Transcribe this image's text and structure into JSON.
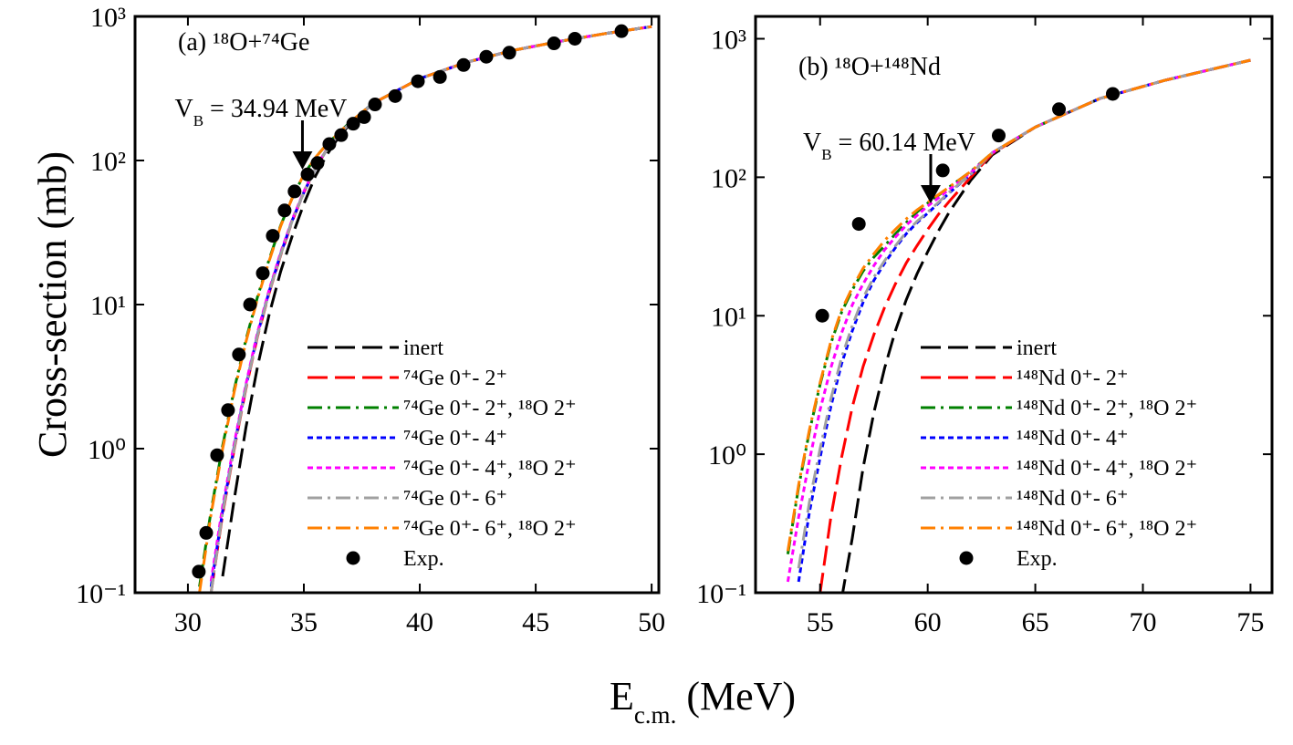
{
  "y_label": "Cross-section (mb)",
  "x_label": [
    {
      "text": "E"
    },
    {
      "text": "c.m.",
      "sub": true
    },
    {
      "text": " (MeV)"
    }
  ],
  "chart_data": [
    {
      "type": "line",
      "title": "(a) ¹⁸O+⁷⁴Ge",
      "yscale": "log",
      "legend_loc": "lower right",
      "xlim": [
        27.72,
        50.31
      ],
      "xticks": [
        30,
        35,
        40,
        45,
        50
      ],
      "ylim": [
        0.1,
        1000
      ],
      "yticks": [
        {
          "value": 0.1,
          "label": "10⁻¹"
        },
        {
          "value": 1,
          "label": "10⁰"
        },
        {
          "value": 10,
          "label": "10¹"
        },
        {
          "value": 100,
          "label": "10²"
        },
        {
          "value": 1000,
          "label": "10³"
        }
      ],
      "annotation": {
        "x": 34.94,
        "parts": [
          {
            "text": "V"
          },
          {
            "text": "B",
            "sub": true
          },
          {
            "text": " = 34.94 MeV"
          }
        ]
      },
      "x": [
        30.5,
        31,
        31.5,
        32,
        32.5,
        33,
        33.5,
        34,
        34.5,
        35,
        35.5,
        36,
        36.5,
        37,
        38,
        40,
        42,
        44,
        46,
        48,
        50
      ],
      "series": [
        {
          "name": "inert",
          "color": "#000000",
          "linestyle": "--",
          "values": [
            null,
            null,
            0.13,
            0.45,
            1.4,
            3.7,
            8.5,
            17,
            30,
            50,
            78,
            110,
            145,
            180,
            250,
            370,
            480,
            580,
            670,
            760,
            850
          ]
        },
        {
          "name": "⁷⁴Ge 0⁺- 2⁺",
          "color": "#ff0000",
          "linestyle": "--",
          "values": [
            null,
            0.1,
            0.35,
            1.0,
            2.6,
            6,
            12,
            22,
            38,
            60,
            88,
            120,
            150,
            183,
            250,
            370,
            480,
            580,
            670,
            760,
            850
          ]
        },
        {
          "name": "⁷⁴Ge 0⁺- 2⁺, ¹⁸O 2⁺",
          "color": "#008000",
          "linestyle": "-.",
          "values": [
            0.11,
            0.37,
            1.05,
            2.6,
            5.7,
            11.3,
            20.5,
            35.5,
            55,
            80,
            105,
            130,
            155,
            185,
            250,
            370,
            480,
            580,
            670,
            760,
            850
          ]
        },
        {
          "name": "⁷⁴Ge 0⁺- 4⁺",
          "color": "#0000ff",
          "linestyle": ":",
          "values": [
            null,
            0.11,
            0.37,
            1.05,
            2.7,
            6.2,
            12.3,
            22.5,
            38.5,
            60,
            88,
            120,
            150,
            183,
            250,
            370,
            480,
            580,
            670,
            760,
            850
          ]
        },
        {
          "name": "⁷⁴Ge 0⁺- 4⁺, ¹⁸O 2⁺",
          "color": "#ff00ff",
          "linestyle": ":",
          "values": [
            null,
            0.12,
            0.4,
            1.1,
            2.8,
            6.4,
            12.6,
            23,
            39,
            61,
            89,
            121,
            151,
            183,
            250,
            370,
            480,
            580,
            670,
            760,
            850
          ]
        },
        {
          "name": "⁷⁴Ge 0⁺- 6⁺",
          "color": "#a0a0a0",
          "linestyle": "-.",
          "values": [
            null,
            0.1,
            0.36,
            1.02,
            2.65,
            6.1,
            12.1,
            22.2,
            38.2,
            60,
            88,
            120,
            150,
            183,
            250,
            370,
            480,
            580,
            670,
            760,
            850
          ]
        },
        {
          "name": "⁷⁴Ge 0⁺- 6⁺, ¹⁸O 2⁺",
          "color": "#ff8000",
          "linestyle": "-.",
          "values": [
            0.1,
            0.35,
            1.0,
            2.5,
            5.5,
            11,
            20,
            35,
            55,
            80,
            105,
            130,
            155,
            185,
            250,
            370,
            480,
            580,
            670,
            760,
            850
          ]
        },
        {
          "name": "Exp.",
          "type": "scatter",
          "color": "#000000",
          "x": [
            30.47,
            30.79,
            31.26,
            31.73,
            32.2,
            32.68,
            33.23,
            33.66,
            34.17,
            34.6,
            35.16,
            35.59,
            36.1,
            36.61,
            37.13,
            37.6,
            38.07,
            38.94,
            39.92,
            40.87,
            41.89,
            42.87,
            43.86,
            45.79,
            46.69,
            48.7
          ],
          "values": [
            0.14,
            0.26,
            0.9,
            1.85,
            4.5,
            10,
            16.5,
            30,
            45,
            61,
            80,
            96,
            130,
            150,
            180,
            200,
            245,
            280,
            355,
            380,
            460,
            525,
            560,
            650,
            700,
            790
          ]
        }
      ]
    },
    {
      "type": "line",
      "title": "(b) ¹⁸O+¹⁴⁸Nd",
      "yscale": "log",
      "legend_loc": "lower right",
      "xlim": [
        52,
        76
      ],
      "xticks": [
        55,
        60,
        65,
        70,
        75
      ],
      "ylim": [
        0.1,
        1450
      ],
      "yticks": [
        {
          "value": 0.1,
          "label": "10⁻¹"
        },
        {
          "value": 1,
          "label": "10⁰"
        },
        {
          "value": 10,
          "label": "10¹"
        },
        {
          "value": 100,
          "label": "10²"
        },
        {
          "value": 1000,
          "label": "10³"
        }
      ],
      "annotation": {
        "x": 60.14,
        "parts": [
          {
            "text": "V"
          },
          {
            "text": "B",
            "sub": true
          },
          {
            "text": " = 60.14 MeV"
          }
        ]
      },
      "x": [
        53.5,
        54,
        54.5,
        55,
        55.5,
        56,
        56.5,
        57,
        57.5,
        58,
        58.5,
        59,
        59.5,
        60,
        60.5,
        61,
        62,
        63,
        65,
        68,
        71,
        75
      ],
      "series": [
        {
          "name": "inert",
          "color": "#000000",
          "linestyle": "--",
          "values": [
            null,
            null,
            null,
            null,
            null,
            0.09,
            0.25,
            0.8,
            2.0,
            4.2,
            7.8,
            13,
            20,
            29,
            41,
            56,
            95,
            145,
            230,
            370,
            500,
            700
          ]
        },
        {
          "name": "¹⁴⁸Nd 0⁺- 2⁺",
          "color": "#ff0000",
          "linestyle": "--",
          "values": [
            null,
            null,
            null,
            0.1,
            0.35,
            0.95,
            2.2,
            4.3,
            7.3,
            11.5,
            17,
            24,
            32,
            42,
            54,
            67,
            100,
            148,
            230,
            370,
            500,
            700
          ]
        },
        {
          "name": "¹⁴⁸Nd 0⁺- 2⁺, ¹⁸O 2⁺",
          "color": "#008000",
          "linestyle": "-.",
          "values": [
            0.19,
            0.58,
            1.45,
            3.2,
            6.3,
            10.6,
            15.4,
            21,
            26.5,
            32,
            39,
            47,
            56,
            65,
            74,
            85,
            110,
            150,
            230,
            370,
            500,
            700
          ]
        },
        {
          "name": "¹⁴⁸Nd 0⁺- 4⁺",
          "color": "#0000ff",
          "linestyle": ":",
          "values": [
            null,
            0.12,
            0.38,
            0.95,
            2.2,
            4.5,
            7.8,
            12.5,
            18,
            24,
            31,
            39,
            47,
            55,
            65,
            77,
            105,
            150,
            230,
            370,
            500,
            700
          ]
        },
        {
          "name": "¹⁴⁸Nd 0⁺- 4⁺, ¹⁸O 2⁺",
          "color": "#ff00ff",
          "linestyle": ":",
          "values": [
            0.12,
            0.35,
            0.9,
            2.1,
            4.2,
            7.5,
            12,
            17,
            23,
            30,
            37,
            45,
            53,
            62,
            71,
            82,
            108,
            150,
            230,
            370,
            500,
            700
          ]
        },
        {
          "name": "¹⁴⁸Nd 0⁺- 6⁺",
          "color": "#a0a0a0",
          "linestyle": "-.",
          "values": [
            null,
            0.15,
            0.45,
            1.1,
            2.5,
            5,
            8.5,
            13.5,
            19,
            25,
            32,
            40,
            48,
            56,
            66,
            78,
            105,
            150,
            230,
            370,
            500,
            700
          ]
        },
        {
          "name": "¹⁴⁸Nd 0⁺- 6⁺, ¹⁸O 2⁺",
          "color": "#ff8000",
          "linestyle": "-.",
          "values": [
            0.2,
            0.6,
            1.5,
            3.3,
            6.5,
            11,
            16,
            22,
            28,
            35,
            42,
            50,
            58,
            66,
            75,
            85,
            110,
            150,
            230,
            370,
            500,
            700
          ]
        },
        {
          "name": "Exp.",
          "type": "scatter",
          "color": "#000000",
          "x": [
            55.1,
            56.8,
            60.7,
            63.3,
            66.1,
            68.6
          ],
          "values": [
            10,
            46,
            112,
            200,
            310,
            400
          ]
        }
      ]
    }
  ]
}
